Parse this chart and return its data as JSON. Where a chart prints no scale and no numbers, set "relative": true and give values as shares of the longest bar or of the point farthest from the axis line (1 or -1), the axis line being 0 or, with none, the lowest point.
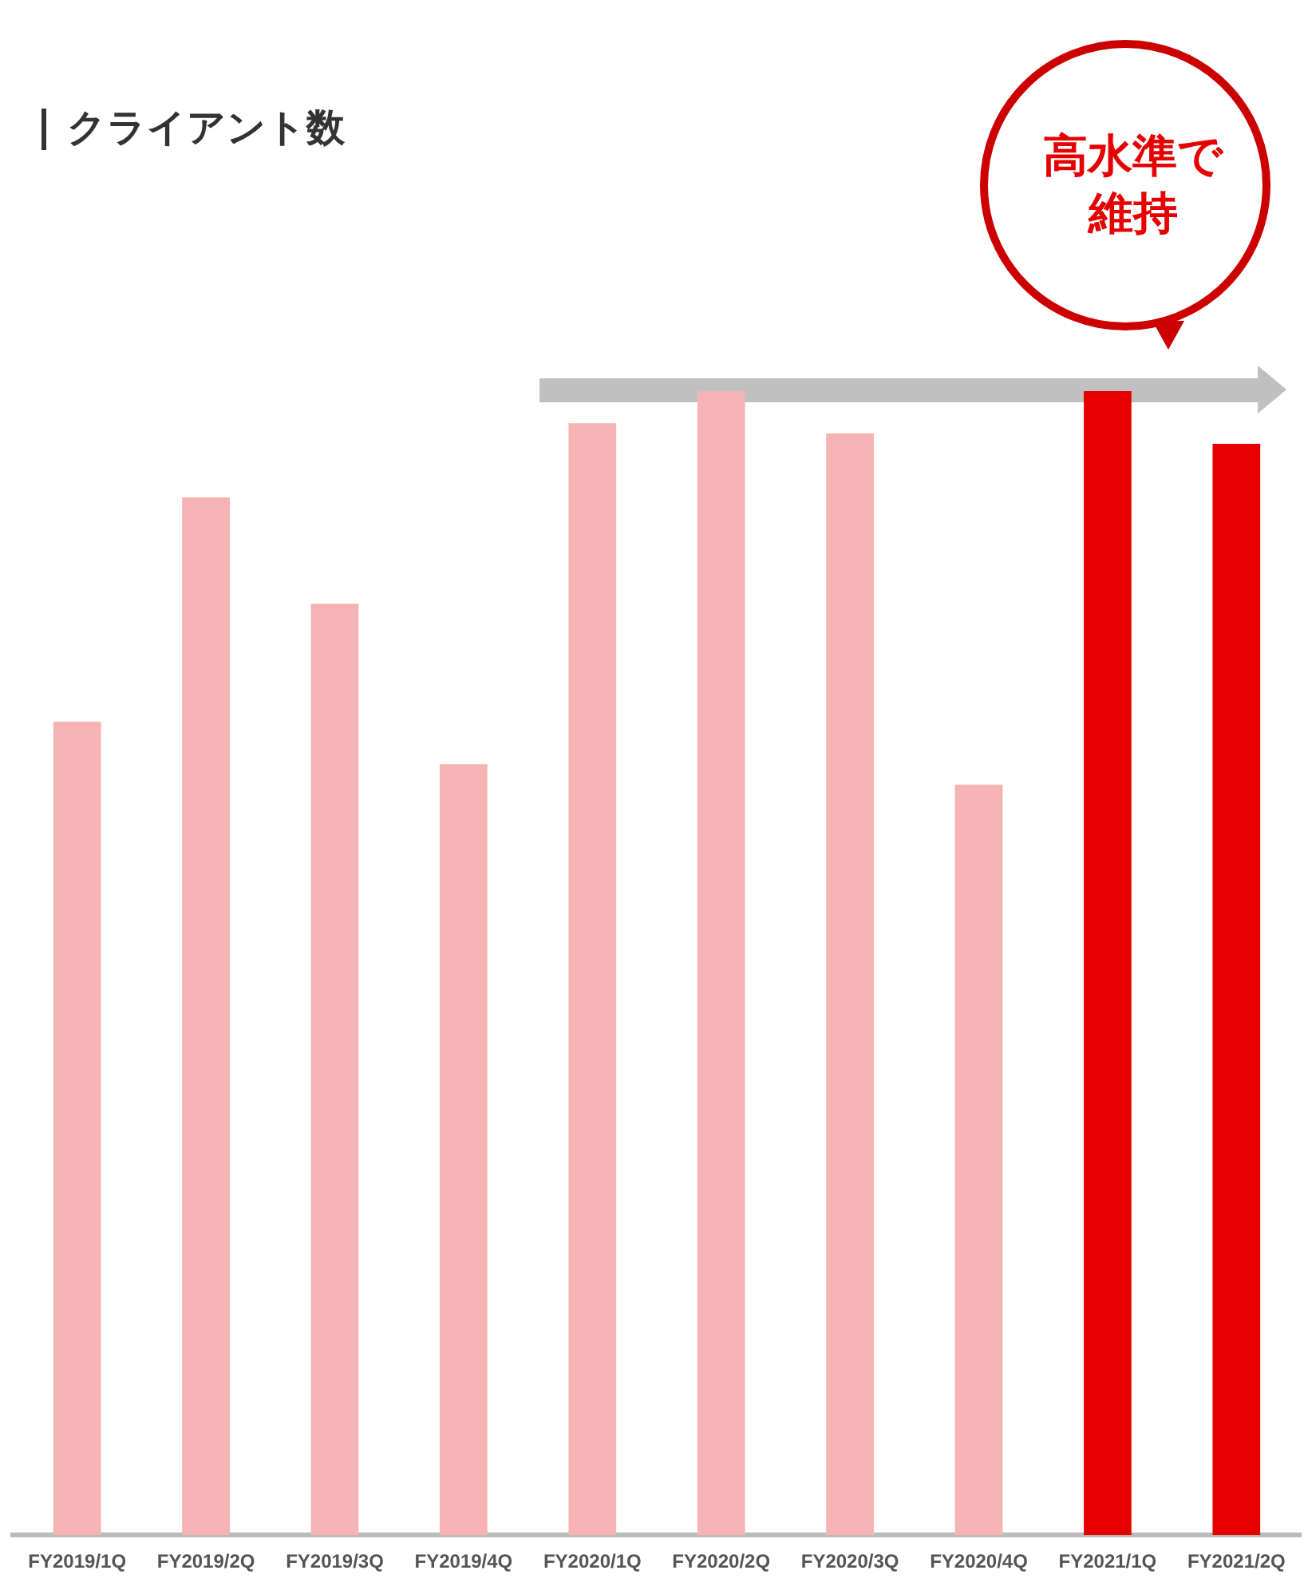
{
  "chart_data": {
    "type": "bar",
    "title": "クライアント数",
    "relative": true,
    "categories": [
      "FY2019/1Q",
      "FY2019/2Q",
      "FY2019/3Q",
      "FY2019/4Q",
      "FY2020/1Q",
      "FY2020/2Q",
      "FY2020/3Q",
      "FY2020/4Q",
      "FY2021/1Q",
      "FY2021/2Q"
    ],
    "values": [
      0.711,
      0.907,
      0.814,
      0.674,
      0.972,
      1,
      0.963,
      0.656,
      1,
      0.954
    ],
    "colors": [
      "#f5b3b3",
      "#f5b3b3",
      "#f5b3b3",
      "#f5b3b3",
      "#f5b3b3",
      "#f5b3b3",
      "#f5b3b3",
      "#f5b3b3",
      "#e60000",
      "#e60000"
    ],
    "annotations": [
      "高水準で維持"
    ]
  }
}
